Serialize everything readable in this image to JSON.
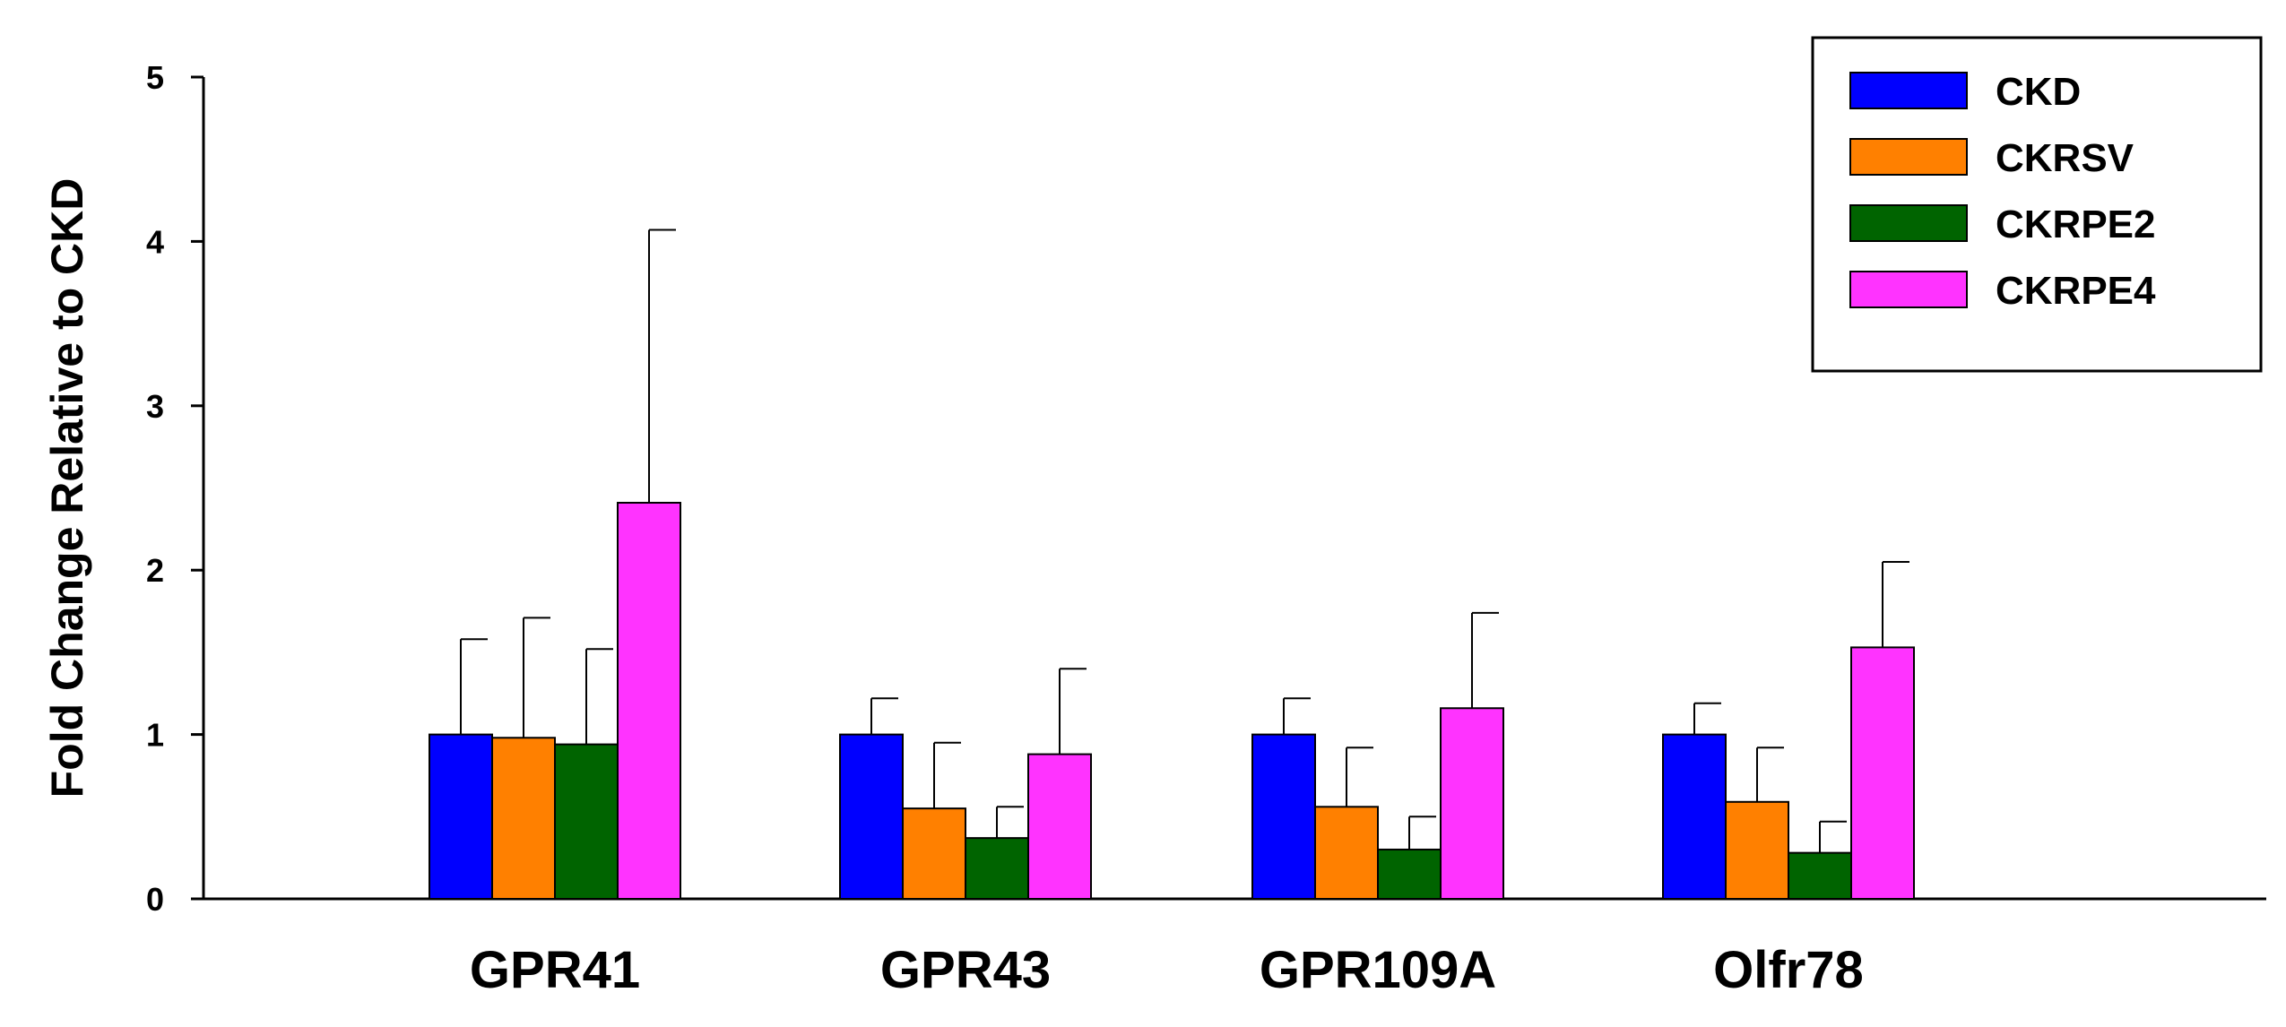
{
  "chart_data": {
    "type": "bar",
    "title": "",
    "xlabel": "",
    "ylabel": "Fold Change Relative to CKD",
    "ylim": [
      0,
      5
    ],
    "yticks": [
      0,
      1,
      2,
      3,
      4,
      5
    ],
    "categories": [
      "GPR41",
      "GPR43",
      "GPR109A",
      "Olfr78"
    ],
    "series": [
      {
        "name": "CKD",
        "color": "#0000ff",
        "values": [
          1.0,
          1.0,
          1.0,
          1.0
        ],
        "errors": [
          0.58,
          0.22,
          0.22,
          0.19
        ]
      },
      {
        "name": "CKRSV",
        "color": "#ff8000",
        "values": [
          0.98,
          0.55,
          0.56,
          0.59
        ],
        "errors": [
          0.73,
          0.4,
          0.36,
          0.33
        ]
      },
      {
        "name": "CKRPE2",
        "color": "#006400",
        "values": [
          0.94,
          0.37,
          0.3,
          0.28
        ],
        "errors": [
          0.58,
          0.19,
          0.2,
          0.19
        ]
      },
      {
        "name": "CKRPE4",
        "color": "#ff33ff",
        "values": [
          2.41,
          0.88,
          1.16,
          1.53
        ],
        "errors": [
          1.66,
          0.52,
          0.58,
          0.52
        ]
      }
    ],
    "legend_position": "top-right",
    "grid": false
  }
}
